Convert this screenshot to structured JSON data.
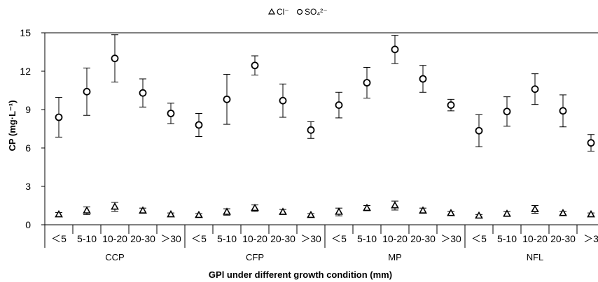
{
  "chart_data": {
    "type": "scatter",
    "title": "",
    "xlabel": "GPl under different growth condition (mm)",
    "ylabel": "CP (mg·L⁻¹)",
    "ylim": [
      0,
      15
    ],
    "yticks": [
      "0",
      "3",
      "6",
      "9",
      "12",
      "15"
    ],
    "grid": false,
    "legend_position": "top-center",
    "legend": [
      "Cl⁻",
      "SO₄²⁻"
    ],
    "groups": [
      "CCP",
      "CFP",
      "MP",
      "NFL"
    ],
    "categories": [
      "＜5",
      "5-10",
      "10-20",
      "20-30",
      "＞30"
    ],
    "last_category_clipped": "＞3",
    "series": [
      {
        "name": "Cl⁻",
        "marker": "triangle",
        "values": [
          0.8,
          1.1,
          1.4,
          1.1,
          0.8,
          0.75,
          1.0,
          1.3,
          1.0,
          0.75,
          1.0,
          1.3,
          1.5,
          1.1,
          0.9,
          0.7,
          0.85,
          1.2,
          0.9,
          0.8
        ],
        "errors": [
          0.15,
          0.3,
          0.35,
          0.2,
          0.12,
          0.12,
          0.25,
          0.25,
          0.2,
          0.12,
          0.3,
          0.2,
          0.35,
          0.2,
          0.15,
          0.1,
          0.2,
          0.3,
          0.15,
          0.12
        ]
      },
      {
        "name": "SO₄²⁻",
        "marker": "circle",
        "values": [
          8.4,
          10.4,
          13.0,
          10.3,
          8.7,
          7.8,
          9.8,
          12.45,
          9.7,
          7.4,
          9.35,
          11.1,
          13.7,
          11.4,
          9.35,
          7.35,
          8.85,
          10.6,
          8.9,
          6.4
        ],
        "errors": [
          1.55,
          1.85,
          1.85,
          1.1,
          0.8,
          0.9,
          1.95,
          0.75,
          1.3,
          0.65,
          1.0,
          1.2,
          1.1,
          1.05,
          0.45,
          1.25,
          1.15,
          1.2,
          1.25,
          0.65
        ]
      }
    ]
  }
}
